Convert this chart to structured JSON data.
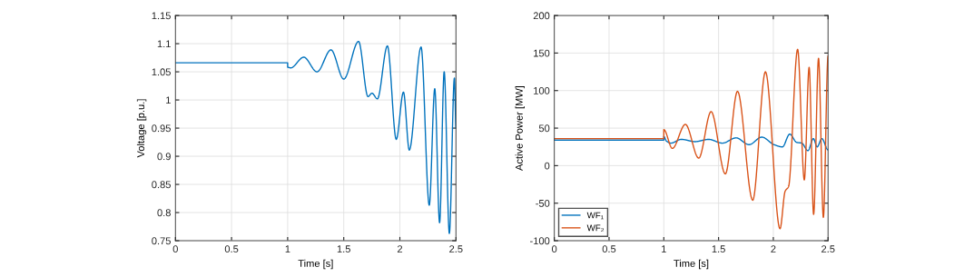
{
  "chart_data": [
    {
      "type": "line",
      "xlabel": "Time [s]",
      "ylabel": "Voltage [p.u.]",
      "xlim": [
        0,
        2.5
      ],
      "ylim": [
        0.75,
        1.15
      ],
      "xticks": [
        0,
        0.5,
        1,
        1.5,
        2,
        2.5
      ],
      "yticks": [
        0.75,
        0.8,
        0.85,
        0.9,
        0.95,
        1,
        1.05,
        1.1,
        1.15
      ],
      "grid": true,
      "legend": false,
      "series": [
        {
          "color": "#0072bd",
          "x": [
            0,
            1,
            1,
            1.027,
            1.143,
            1.262,
            1.386,
            1.5,
            1.632,
            1.716,
            1.751,
            1.8,
            1.889,
            1.968,
            2.032,
            2.084,
            2.189,
            2.262,
            2.311,
            2.354,
            2.395,
            2.441,
            2.486,
            2.5
          ],
          "values": [
            1.066,
            1.066,
            1.058,
            1.057,
            1.076,
            1.05,
            1.089,
            1.037,
            1.104,
            1.006,
            1.012,
            1.002,
            1.096,
            0.93,
            1.014,
            0.911,
            1.094,
            0.813,
            1.02,
            0.782,
            1.05,
            0.763,
            1.039,
            0.95
          ]
        }
      ]
    },
    {
      "type": "line",
      "xlabel": "Time [s]",
      "ylabel": "Active Power [MW]",
      "xlim": [
        0,
        2.5
      ],
      "ylim": [
        -100,
        200
      ],
      "xticks": [
        0,
        0.5,
        1,
        1.5,
        2,
        2.5
      ],
      "yticks": [
        -100,
        -50,
        0,
        50,
        100,
        150,
        200
      ],
      "grid": true,
      "legend": "bottom left",
      "series": [
        {
          "name": "WF₁",
          "color": "#0072bd",
          "x": [
            0,
            1,
            1,
            1.022,
            1.064,
            1.16,
            1.285,
            1.41,
            1.535,
            1.66,
            1.778,
            1.895,
            2.006,
            2.083,
            2.15,
            2.213,
            2.26,
            2.316,
            2.366,
            2.4,
            2.443,
            2.5
          ],
          "values": [
            34,
            34,
            39,
            33,
            30,
            35,
            32,
            35,
            30,
            37,
            28,
            38,
            28,
            25,
            42,
            31,
            30,
            20,
            36,
            25,
            36,
            21
          ]
        },
        {
          "name": "WF₂",
          "color": "#d95319",
          "x": [
            0,
            1,
            1,
            1.078,
            1.197,
            1.319,
            1.432,
            1.562,
            1.673,
            1.812,
            1.928,
            2.061,
            2.108,
            2.139,
            2.222,
            2.283,
            2.327,
            2.368,
            2.413,
            2.457,
            2.5
          ],
          "values": [
            36,
            36,
            48,
            23,
            55,
            10,
            72,
            -11,
            99,
            -46,
            125,
            -84,
            -34,
            -28,
            155,
            -19,
            131,
            -65,
            143,
            -69,
            146
          ]
        }
      ]
    }
  ]
}
